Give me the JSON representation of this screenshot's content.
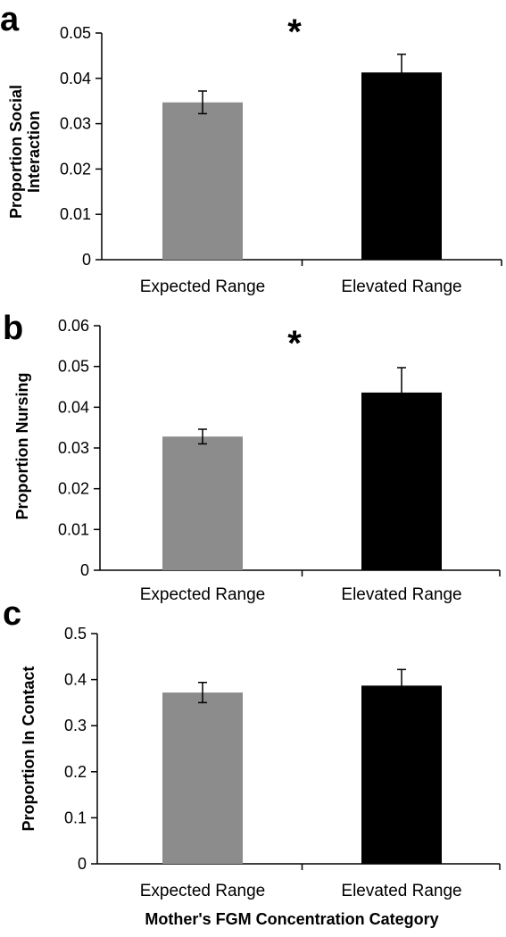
{
  "x_title": "Mother's FGM Concentration Category",
  "colors": {
    "expected": "#8c8c8c",
    "elevated": "#000000",
    "axis": "#000000"
  },
  "chart_data": [
    {
      "type": "bar",
      "panel": "a",
      "ylabel": "Proportion Social\nInteraction",
      "categories": [
        "Expected Range",
        "Elevated Range"
      ],
      "values": [
        0.0347,
        0.0413
      ],
      "errors": [
        0.0025,
        0.004
      ],
      "ylim": [
        0,
        0.05
      ],
      "yticks": [
        0,
        0.01,
        0.02,
        0.03,
        0.04,
        0.05
      ],
      "ytick_labels": [
        "0",
        "0.01",
        "0.02",
        "0.03",
        "0.04",
        "0.05"
      ],
      "significance": "*",
      "grid": false
    },
    {
      "type": "bar",
      "panel": "b",
      "ylabel": "Proportion Nursing",
      "categories": [
        "Expected Range",
        "Elevated Range"
      ],
      "values": [
        0.0328,
        0.0436
      ],
      "errors": [
        0.0018,
        0.0061
      ],
      "ylim": [
        0,
        0.06
      ],
      "yticks": [
        0,
        0.01,
        0.02,
        0.03,
        0.04,
        0.05,
        0.06
      ],
      "ytick_labels": [
        "0",
        "0.01",
        "0.02",
        "0.03",
        "0.04",
        "0.05",
        "0.06"
      ],
      "significance": "*",
      "grid": false
    },
    {
      "type": "bar",
      "panel": "c",
      "ylabel": "Proportion In Contact",
      "categories": [
        "Expected Range",
        "Elevated Range"
      ],
      "values": [
        0.372,
        0.387
      ],
      "errors": [
        0.022,
        0.035
      ],
      "ylim": [
        0,
        0.5
      ],
      "yticks": [
        0,
        0.1,
        0.2,
        0.3,
        0.4,
        0.5
      ],
      "ytick_labels": [
        "0",
        "0.1",
        "0.2",
        "0.3",
        "0.4",
        "0.5"
      ],
      "significance": "",
      "grid": false
    }
  ]
}
